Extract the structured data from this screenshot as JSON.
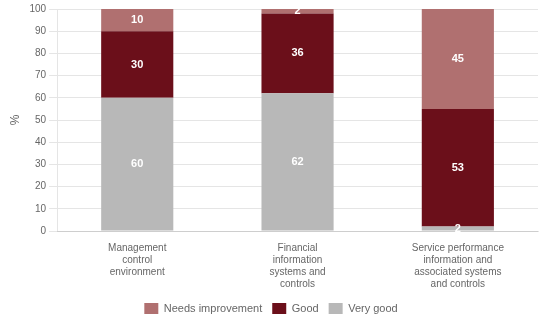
{
  "chart_data": {
    "type": "bar",
    "stacked": true,
    "categories": [
      "Management\ncontrol\nenvironment",
      "Financial\ninformation\nsystems and\ncontrols",
      "Service performance\ninformation and\nassociated systems\nand controls"
    ],
    "series": [
      {
        "name": "Very good",
        "color": "#b8b8b8",
        "values": [
          60,
          62,
          2
        ]
      },
      {
        "name": "Good",
        "color": "#6b0f1a",
        "values": [
          30,
          36,
          53
        ]
      },
      {
        "name": "Needs improvement",
        "color": "#b07070",
        "values": [
          10,
          2,
          45
        ]
      }
    ],
    "ylabel": "%",
    "ylim": [
      0,
      100
    ],
    "yticks": [
      0,
      10,
      20,
      30,
      40,
      50,
      60,
      70,
      80,
      90,
      100
    ],
    "grid": true,
    "legend": "bottom",
    "data_labels": true
  }
}
